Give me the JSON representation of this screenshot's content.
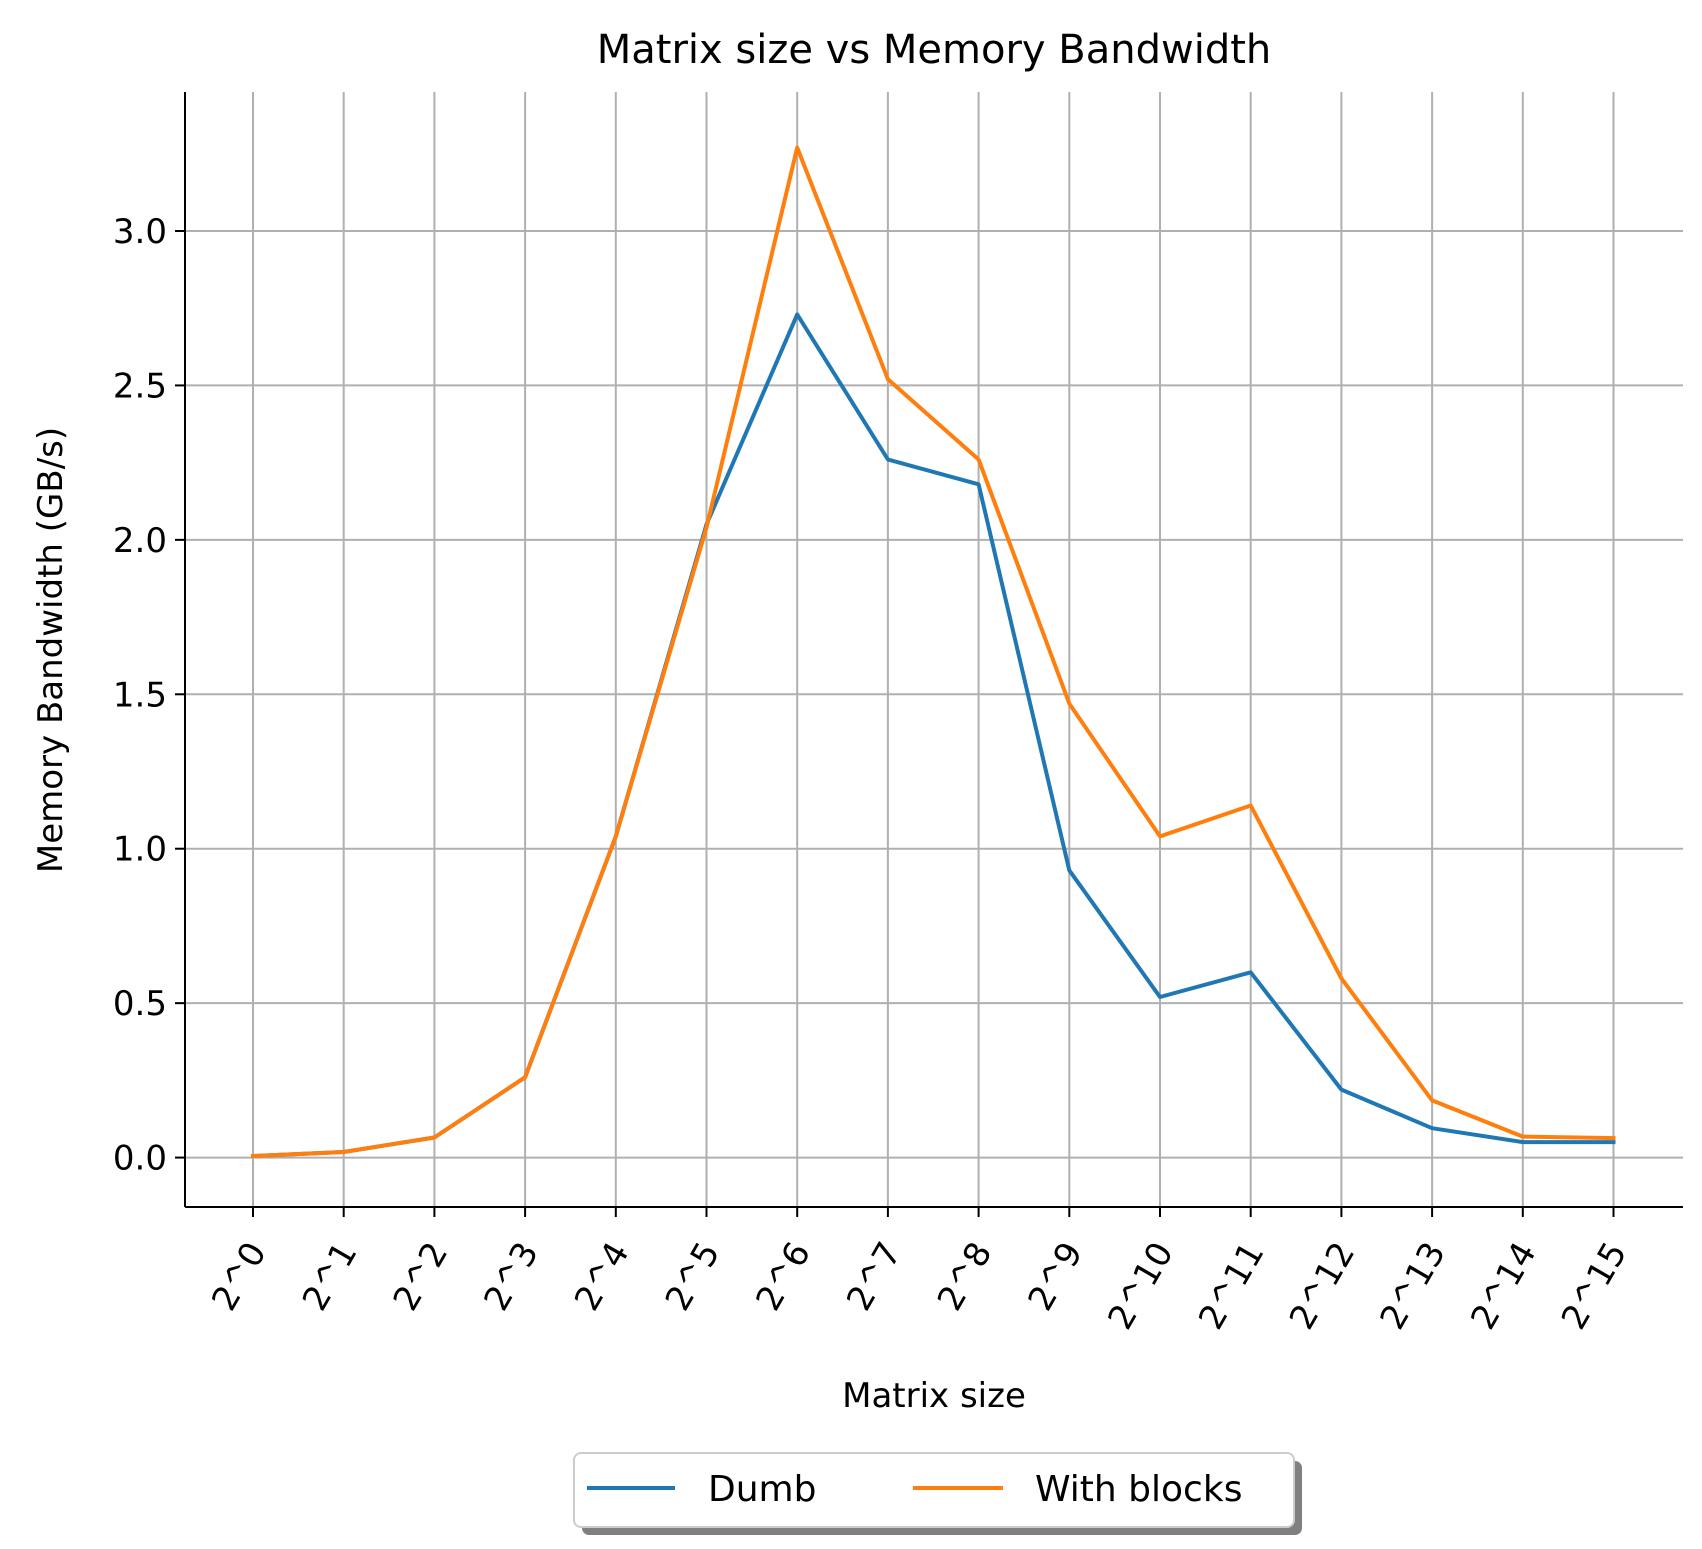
{
  "chart_data": {
    "type": "line",
    "title": "Matrix size vs Memory Bandwidth",
    "xlabel": "Matrix size",
    "ylabel": "Memory Bandwidth (GB/s)",
    "categories": [
      "2^0",
      "2^1",
      "2^2",
      "2^3",
      "2^4",
      "2^5",
      "2^6",
      "2^7",
      "2^8",
      "2^9",
      "2^10",
      "2^11",
      "2^12",
      "2^13",
      "2^14",
      "2^15"
    ],
    "ylim": [
      -0.16,
      3.45
    ],
    "yticks": [
      0.0,
      0.5,
      1.0,
      1.5,
      2.0,
      2.5,
      3.0
    ],
    "ytick_labels": [
      "0.0",
      "0.5",
      "1.0",
      "1.5",
      "2.0",
      "2.5",
      "3.0"
    ],
    "grid": true,
    "legend_position": "bottom-center",
    "series": [
      {
        "name": "Dumb",
        "color": "#1f77b4",
        "values": [
          0.005,
          0.018,
          0.065,
          0.26,
          1.04,
          2.05,
          2.73,
          2.26,
          2.18,
          0.93,
          0.52,
          0.6,
          0.22,
          0.095,
          0.05,
          0.05
        ]
      },
      {
        "name": "With blocks",
        "color": "#ff7f0e",
        "values": [
          0.005,
          0.018,
          0.065,
          0.26,
          1.04,
          2.04,
          3.27,
          2.52,
          2.26,
          1.47,
          1.04,
          1.14,
          0.58,
          0.185,
          0.068,
          0.063
        ]
      }
    ]
  }
}
